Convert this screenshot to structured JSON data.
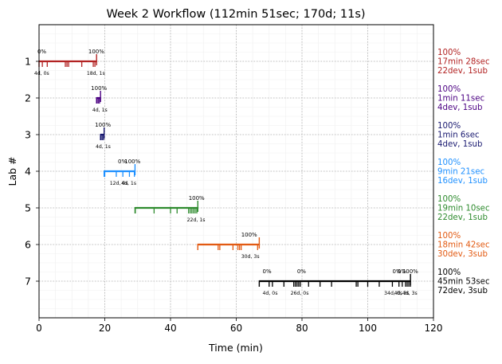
{
  "chart_data": {
    "type": "timeline",
    "title": "Week 2 Workflow (112min 51sec; 170d; 11s)",
    "xlabel": "Time (min)",
    "ylabel": "Lab #",
    "xlim": [
      0,
      120
    ],
    "ylim": [
      0,
      8
    ],
    "y_inverted": true,
    "x_ticks": [
      0,
      20,
      40,
      60,
      80,
      100,
      120
    ],
    "y_ticks": [
      1,
      2,
      3,
      4,
      5,
      6,
      7
    ],
    "grid": true,
    "series": [
      {
        "lab": 1,
        "color": "#b22222",
        "bar": [
          0,
          17.5
        ],
        "ticks": [
          1,
          2.5,
          8,
          8.5,
          9,
          13,
          16.5,
          17
        ],
        "top_labels": [
          {
            "x": -0.5,
            "text": "0%"
          },
          {
            "x": 15,
            "text": "100%"
          }
        ],
        "bottom_labels": [
          {
            "x": -1.5,
            "text": "4d, 0s"
          },
          {
            "x": 14.5,
            "text": "18d, 1s"
          }
        ],
        "summary": [
          "100%",
          "17min 28sec",
          "22dev, 1sub"
        ]
      },
      {
        "lab": 2,
        "color": "#4b0082",
        "bar": [
          17.5,
          18.7
        ],
        "ticks": [
          17.6,
          18.0,
          18.4
        ],
        "top_labels": [
          {
            "x": 15.8,
            "text": "100%"
          }
        ],
        "bottom_labels": [
          {
            "x": 16.2,
            "text": "4d, 1s"
          }
        ],
        "summary": [
          "100%",
          "1min 11sec",
          "4dev, 1sub"
        ]
      },
      {
        "lab": 3,
        "color": "#191970",
        "bar": [
          18.7,
          19.8
        ],
        "ticks": [
          18.8,
          19.2,
          19.6
        ],
        "top_labels": [
          {
            "x": 17.0,
            "text": "100%"
          }
        ],
        "bottom_labels": [
          {
            "x": 17.2,
            "text": "4d, 1s"
          }
        ],
        "summary": [
          "100%",
          "1min 6sec",
          "4dev, 1sub"
        ]
      },
      {
        "lab": 4,
        "color": "#1e90ff",
        "bar": [
          19.8,
          29.2
        ],
        "ticks": [
          20,
          23.5,
          25.5,
          27.5,
          29
        ],
        "top_labels": [
          {
            "x": 24,
            "text": "0%"
          },
          {
            "x": 26,
            "text": "100%"
          }
        ],
        "bottom_labels": [
          {
            "x": 21.5,
            "text": "12d, 0s"
          },
          {
            "x": 25,
            "text": "4d, 1s"
          }
        ],
        "summary": [
          "100%",
          "9min 21sec",
          "16dev, 1sub"
        ]
      },
      {
        "lab": 5,
        "color": "#2e8b2e",
        "bar": [
          29.2,
          48.3
        ],
        "ticks": [
          29.3,
          35,
          40,
          42,
          45.5,
          46,
          46.5,
          47,
          47.5,
          48
        ],
        "top_labels": [
          {
            "x": 45.5,
            "text": "100%"
          }
        ],
        "bottom_labels": [
          {
            "x": 45,
            "text": "22d, 1s"
          }
        ],
        "summary": [
          "100%",
          "19min 10sec",
          "22dev, 1sub"
        ]
      },
      {
        "lab": 6,
        "color": "#e25a12",
        "bar": [
          48.3,
          67
        ],
        "ticks": [
          54.5,
          55,
          59,
          60.5,
          61,
          61.5,
          66.5
        ],
        "top_labels": [
          {
            "x": 61.5,
            "text": "100%"
          }
        ],
        "bottom_labels": [
          {
            "x": 61.5,
            "text": "30d, 3s"
          }
        ],
        "summary": [
          "100%",
          "18min 42sec",
          "30dev, 3sub"
        ]
      },
      {
        "lab": 7,
        "color": "#000000",
        "bar": [
          67,
          113
        ],
        "ticks": [
          70,
          71,
          74.5,
          77.5,
          78,
          78.5,
          79,
          79.5,
          82,
          85.5,
          89,
          96.5,
          97,
          100,
          103.5,
          107.5,
          109.5,
          110.5,
          111.5,
          112,
          112.5,
          113
        ],
        "top_labels": [
          {
            "x": 68,
            "text": "0%"
          },
          {
            "x": 78.5,
            "text": "0%"
          },
          {
            "x": 107.5,
            "text": "0%"
          },
          {
            "x": 109,
            "text": "0%"
          },
          {
            "x": 110.5,
            "text": "100%"
          }
        ],
        "bottom_labels": [
          {
            "x": 68,
            "text": "4d, 0s"
          },
          {
            "x": 76.5,
            "text": "26d, 0s"
          },
          {
            "x": 105,
            "text": "34d, 0s"
          },
          {
            "x": 108,
            "text": "4d, 3s"
          },
          {
            "x": 110.5,
            "text": "4d, 3s"
          }
        ],
        "summary": [
          "100%",
          "45min 53sec",
          "72dev, 3sub"
        ]
      }
    ]
  }
}
